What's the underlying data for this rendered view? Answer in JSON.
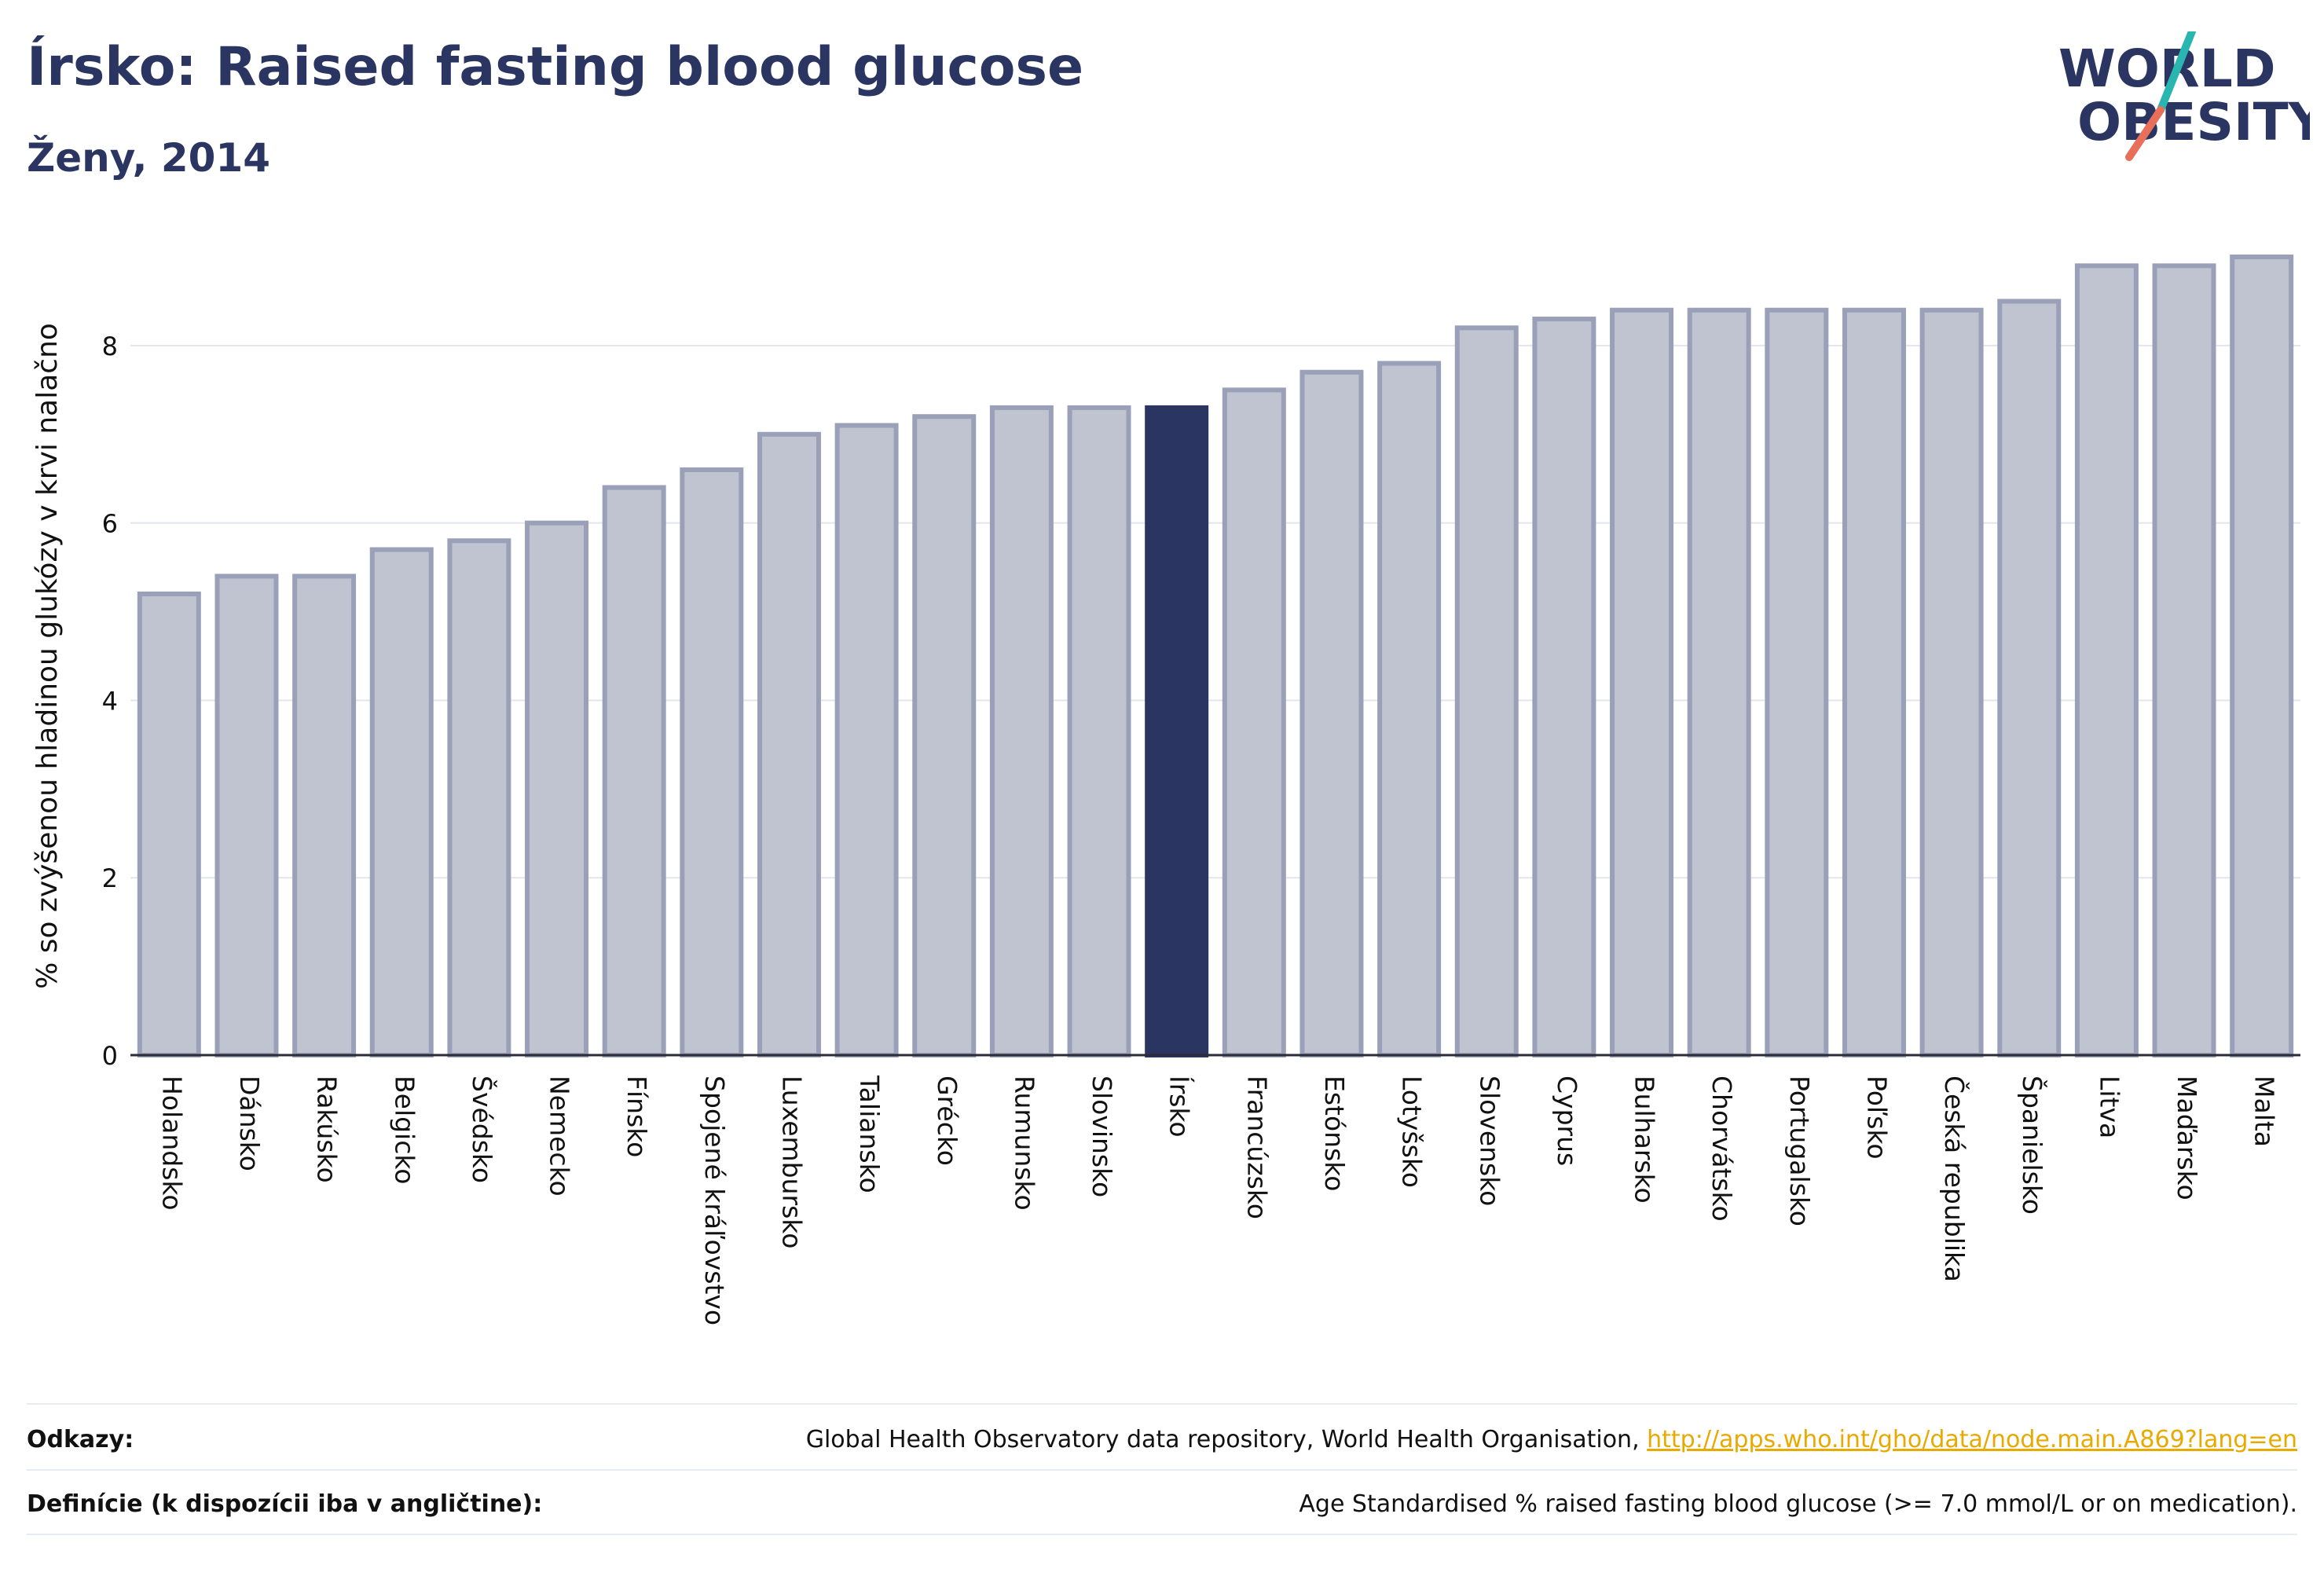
{
  "header": {
    "title": "Írsko: Raised fasting blood glucose",
    "subtitle": "Ženy, 2014"
  },
  "logo": {
    "line1": "WORLD",
    "line2": "OBESITY",
    "text_color": "#2b3561",
    "accent_teal": "#2ab6b0",
    "accent_coral": "#e8705a"
  },
  "colors": {
    "bar_default": "#c0c3d0",
    "bar_border": "#9aa0b8",
    "bar_highlight": "#2b3561"
  },
  "chart_data": {
    "type": "bar",
    "title": "Írsko: Raised fasting blood glucose",
    "subtitle": "Ženy, 2014",
    "xlabel": "",
    "ylabel": "% so zvýšenou hladinou glukózy v krvi nalačno",
    "ylim": [
      0,
      9
    ],
    "yticks": [
      0,
      2,
      4,
      6,
      8
    ],
    "grid": true,
    "highlight": "Írsko",
    "categories": [
      "Holandsko",
      "Dánsko",
      "Rakúsko",
      "Belgicko",
      "Švédsko",
      "Nemecko",
      "Fínsko",
      "Spojené kráľovstvo",
      "Luxembursko",
      "Taliansko",
      "Grécko",
      "Rumunsko",
      "Slovinsko",
      "Írsko",
      "Francúzsko",
      "Estónsko",
      "Lotyšsko",
      "Slovensko",
      "Cyprus",
      "Bulharsko",
      "Chorvátsko",
      "Portugalsko",
      "Poľsko",
      "Česká republika",
      "Španielsko",
      "Litva",
      "Maďarsko",
      "Malta"
    ],
    "values": [
      5.2,
      5.4,
      5.4,
      5.7,
      5.8,
      6.0,
      6.4,
      6.6,
      7.0,
      7.1,
      7.2,
      7.3,
      7.3,
      7.3,
      7.5,
      7.7,
      7.8,
      8.2,
      8.3,
      8.4,
      8.4,
      8.4,
      8.4,
      8.4,
      8.5,
      8.9,
      8.9,
      9.0
    ]
  },
  "footer": {
    "references_label": "Odkazy:",
    "references_text": "Global Health Observatory data repository, World Health Organisation, ",
    "references_link": "http://apps.who.int/gho/data/node.main.A869?lang=en",
    "definitions_label": "Definície (k dispozícii iba v angličtine):",
    "definitions_text": "Age Standardised % raised fasting blood glucose (>= 7.0 mmol/L or on medication)."
  }
}
